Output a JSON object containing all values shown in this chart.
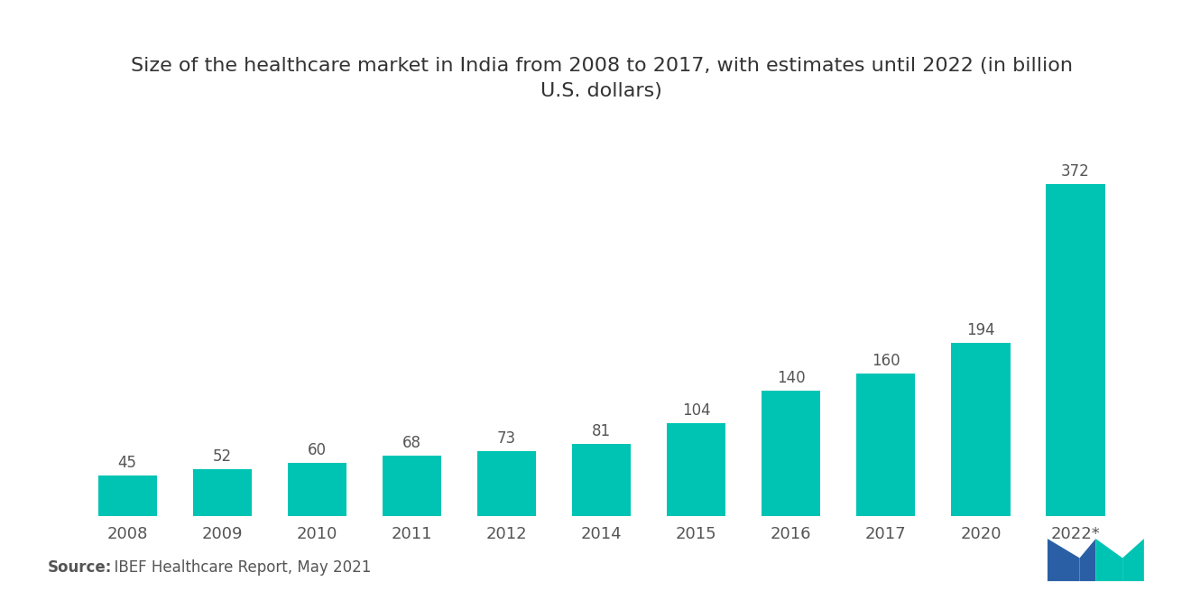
{
  "title_line1": "Size of the healthcare market in India from 2008 to 2017, with estimates until 2022 (in billion",
  "title_line2": "U.S. dollars)",
  "categories": [
    "2008",
    "2009",
    "2010",
    "2011",
    "2012",
    "2014",
    "2015",
    "2016",
    "2017",
    "2020",
    "2022*"
  ],
  "values": [
    45,
    52,
    60,
    68,
    73,
    81,
    104,
    140,
    160,
    194,
    372
  ],
  "bar_color": "#00C4B3",
  "background_color": "#ffffff",
  "title_fontsize": 16,
  "label_fontsize": 12,
  "tick_fontsize": 13,
  "source_bold": "Source:",
  "source_normal": "  IBEF Healthcare Report, May 2021",
  "source_fontsize": 12,
  "ylim": [
    0,
    430
  ]
}
